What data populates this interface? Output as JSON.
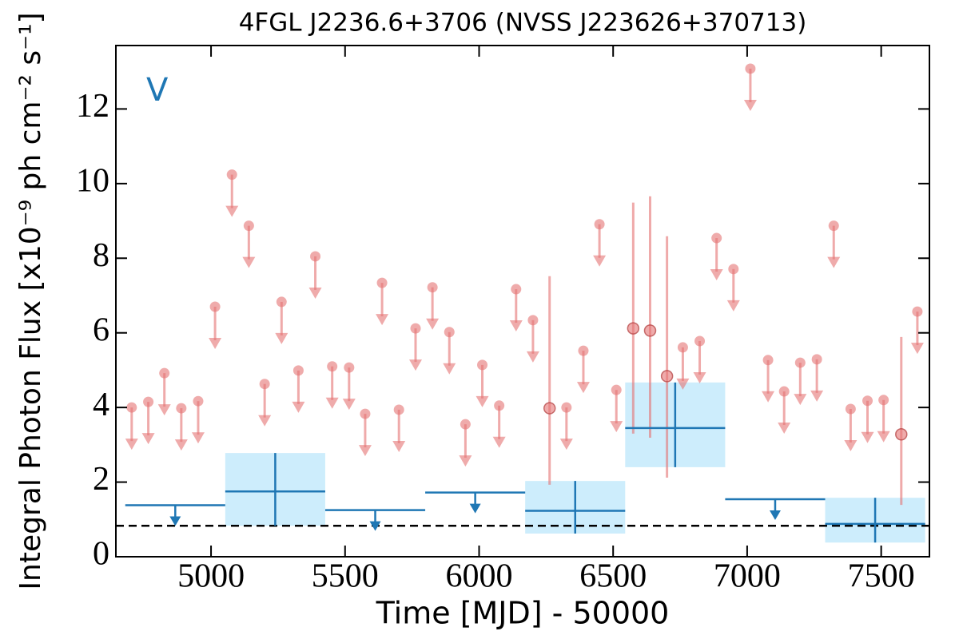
{
  "chart_data": {
    "type": "lightcurve",
    "title": "4FGL J2236.6+3706 (NVSS J223626+370713)",
    "x_label": "Time [MJD] - 50000",
    "y_label": "Integral Photon Flux [x10⁻⁹ ph cm⁻² s⁻¹]",
    "annotation": "V",
    "xlim": [
      4645,
      7680
    ],
    "ylim": [
      0,
      13.7
    ],
    "xticks": [
      5000,
      5500,
      6000,
      6500,
      7000,
      7500
    ],
    "yticks": [
      0,
      2,
      4,
      6,
      8,
      10,
      12
    ],
    "reference_line": 0.83,
    "series": [
      {
        "color": "#e57373",
        "upper_limit": true,
        "x": [
          4704,
          4766,
          4826,
          4889,
          4952,
          5015,
          5078,
          5141,
          5200,
          5263,
          5326,
          5389,
          5452,
          5515,
          5575,
          5638,
          5701,
          5763,
          5826,
          5889,
          5949,
          6012,
          6075,
          6138,
          6201,
          6326,
          6389,
          6449,
          6512,
          6760,
          6823,
          6886,
          6949,
          7012,
          7078,
          7138,
          7198,
          7260,
          7323,
          7386,
          7449,
          7509,
          7635
        ],
        "values": [
          4.0,
          4.15,
          4.92,
          3.98,
          4.17,
          6.7,
          10.24,
          8.87,
          4.63,
          6.83,
          4.99,
          8.05,
          5.1,
          5.07,
          3.83,
          7.34,
          3.94,
          6.12,
          7.22,
          6.02,
          3.55,
          5.14,
          4.05,
          7.17,
          6.34,
          4.0,
          5.52,
          8.91,
          4.47,
          5.61,
          5.78,
          8.54,
          7.71,
          13.08,
          5.27,
          4.43,
          5.2,
          5.29,
          8.87,
          3.96,
          4.18,
          4.2,
          6.57
        ]
      },
      {
        "color": "#e57373",
        "upper_limit": false,
        "x": [
          6263,
          6575,
          6638,
          6701,
          7575
        ],
        "values": [
          3.98,
          6.12,
          6.06,
          4.84,
          3.28
        ],
        "err_low": [
          2.05,
          2.82,
          2.87,
          2.72,
          1.89
        ],
        "err_high": [
          3.54,
          3.37,
          3.6,
          3.75,
          2.61
        ]
      },
      {
        "color": "#1f77b4",
        "upper_limit": true,
        "x": [
          4866.5,
          5612.5,
          5985.5,
          7104.5
        ],
        "x_low": [
          4680,
          5426,
          5799,
          6918
        ],
        "x_high": [
          5053,
          5799,
          6172,
          7291
        ],
        "values": [
          1.38,
          1.25,
          1.72,
          1.54
        ]
      },
      {
        "color": "#1f77b4",
        "box_color": "#cdedfc",
        "upper_limit": false,
        "x": [
          5239.5,
          6358.5,
          6731.5,
          7477.5
        ],
        "x_low": [
          5053,
          6172,
          6545,
          7291
        ],
        "x_high": [
          5426,
          6545,
          6918,
          7664
        ],
        "values": [
          1.75,
          1.23,
          3.45,
          0.88
        ],
        "err_low": [
          0.92,
          0.61,
          1.05,
          0.5
        ],
        "err_high": [
          1.03,
          0.8,
          1.22,
          0.7
        ]
      }
    ]
  }
}
